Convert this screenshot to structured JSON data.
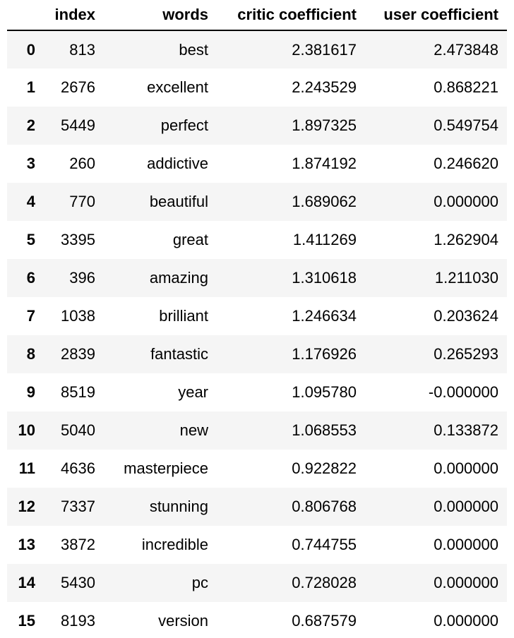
{
  "table": {
    "columns": [
      "",
      "index",
      "words",
      "critic coefficient",
      "user coefficient"
    ],
    "rows": [
      {
        "row": "0",
        "index": "813",
        "words": "best",
        "critic": "2.381617",
        "user": "2.473848"
      },
      {
        "row": "1",
        "index": "2676",
        "words": "excellent",
        "critic": "2.243529",
        "user": "0.868221"
      },
      {
        "row": "2",
        "index": "5449",
        "words": "perfect",
        "critic": "1.897325",
        "user": "0.549754"
      },
      {
        "row": "3",
        "index": "260",
        "words": "addictive",
        "critic": "1.874192",
        "user": "0.246620"
      },
      {
        "row": "4",
        "index": "770",
        "words": "beautiful",
        "critic": "1.689062",
        "user": "0.000000"
      },
      {
        "row": "5",
        "index": "3395",
        "words": "great",
        "critic": "1.411269",
        "user": "1.262904"
      },
      {
        "row": "6",
        "index": "396",
        "words": "amazing",
        "critic": "1.310618",
        "user": "1.211030"
      },
      {
        "row": "7",
        "index": "1038",
        "words": "brilliant",
        "critic": "1.246634",
        "user": "0.203624"
      },
      {
        "row": "8",
        "index": "2839",
        "words": "fantastic",
        "critic": "1.176926",
        "user": "0.265293"
      },
      {
        "row": "9",
        "index": "8519",
        "words": "year",
        "critic": "1.095780",
        "user": "-0.000000"
      },
      {
        "row": "10",
        "index": "5040",
        "words": "new",
        "critic": "1.068553",
        "user": "0.133872"
      },
      {
        "row": "11",
        "index": "4636",
        "words": "masterpiece",
        "critic": "0.922822",
        "user": "0.000000"
      },
      {
        "row": "12",
        "index": "7337",
        "words": "stunning",
        "critic": "0.806768",
        "user": "0.000000"
      },
      {
        "row": "13",
        "index": "3872",
        "words": "incredible",
        "critic": "0.744755",
        "user": "0.000000"
      },
      {
        "row": "14",
        "index": "5430",
        "words": "pc",
        "critic": "0.728028",
        "user": "0.000000"
      },
      {
        "row": "15",
        "index": "8193",
        "words": "version",
        "critic": "0.687579",
        "user": "0.000000"
      }
    ]
  }
}
